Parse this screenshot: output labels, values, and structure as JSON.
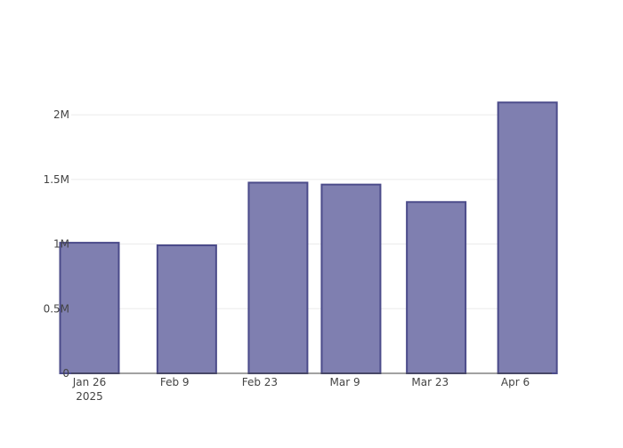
{
  "chart_data": {
    "type": "bar",
    "x": [
      "2025-01-26",
      "2025-02-11",
      "2025-02-26",
      "2025-03-10",
      "2025-03-24",
      "2025-04-08"
    ],
    "values": [
      1010000,
      990000,
      1475000,
      1460000,
      1325000,
      2095000
    ],
    "xlim": [
      "2025-01-23",
      "2025-04-12"
    ],
    "ylim": [
      0,
      2200000
    ],
    "x_ticks": [
      {
        "date": "2025-01-26",
        "label": "Jan 26",
        "sublabel": "2025"
      },
      {
        "date": "2025-02-09",
        "label": "Feb 9",
        "sublabel": ""
      },
      {
        "date": "2025-02-23",
        "label": "Feb 23",
        "sublabel": ""
      },
      {
        "date": "2025-03-09",
        "label": "Mar 9",
        "sublabel": ""
      },
      {
        "date": "2025-03-23",
        "label": "Mar 23",
        "sublabel": ""
      },
      {
        "date": "2025-04-06",
        "label": "Apr 6",
        "sublabel": ""
      }
    ],
    "y_ticks": [
      {
        "value": 0,
        "label": "0"
      },
      {
        "value": 500000,
        "label": "0.5M"
      },
      {
        "value": 1000000,
        "label": "1M"
      },
      {
        "value": 1500000,
        "label": "1.5M"
      },
      {
        "value": 2000000,
        "label": "2M"
      }
    ],
    "grid": true,
    "title": "",
    "xlabel": "",
    "ylabel": ""
  },
  "colors": {
    "bar_fill": "#7f7fb0",
    "bar_stroke": "#4b4b8a",
    "grid": "#ebebeb",
    "axis": "#444444",
    "text": "#444444"
  }
}
